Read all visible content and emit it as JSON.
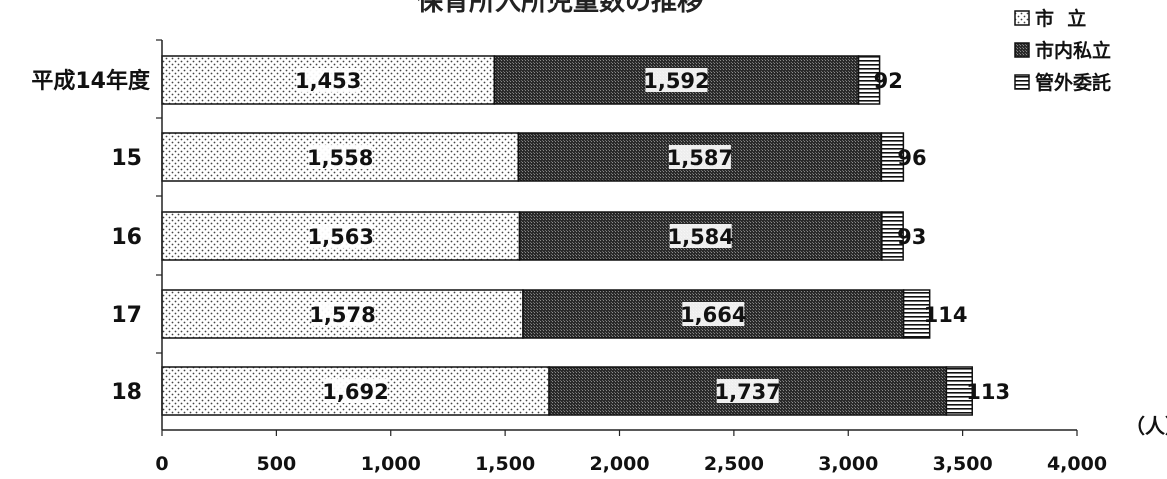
{
  "chart_data": {
    "type": "bar",
    "orientation": "horizontal",
    "stacked": true,
    "title": "保育所入所児童数の推移",
    "unit": "（人）",
    "categories": [
      "平成14年度",
      "15",
      "16",
      "17",
      "18"
    ],
    "series": [
      {
        "name": "市  立",
        "values": [
          1453,
          1558,
          1563,
          1578,
          1692
        ],
        "pattern": "dots"
      },
      {
        "name": "市内私立",
        "values": [
          1592,
          1587,
          1584,
          1664,
          1737
        ],
        "pattern": "dark"
      },
      {
        "name": "管外委託",
        "values": [
          92,
          96,
          93,
          114,
          113
        ],
        "pattern": "stripes"
      }
    ],
    "xlim": [
      0,
      4000
    ],
    "xticks": [
      0,
      500,
      1000,
      1500,
      2000,
      2500,
      3000,
      3500,
      4000
    ],
    "xtick_labels": [
      "0",
      "500",
      "1,000",
      "1,500",
      "2,000",
      "2,500",
      "3,000",
      "3,500",
      "4,000"
    ],
    "value_labels": [
      [
        "1,453",
        "1,592",
        "92"
      ],
      [
        "1,558",
        "1,587",
        "96"
      ],
      [
        "1,563",
        "1,584",
        "93"
      ],
      [
        "1,578",
        "1,664",
        "114"
      ],
      [
        "1,692",
        "1,737",
        "113"
      ]
    ],
    "legend_position": "top-right",
    "grid": false
  }
}
